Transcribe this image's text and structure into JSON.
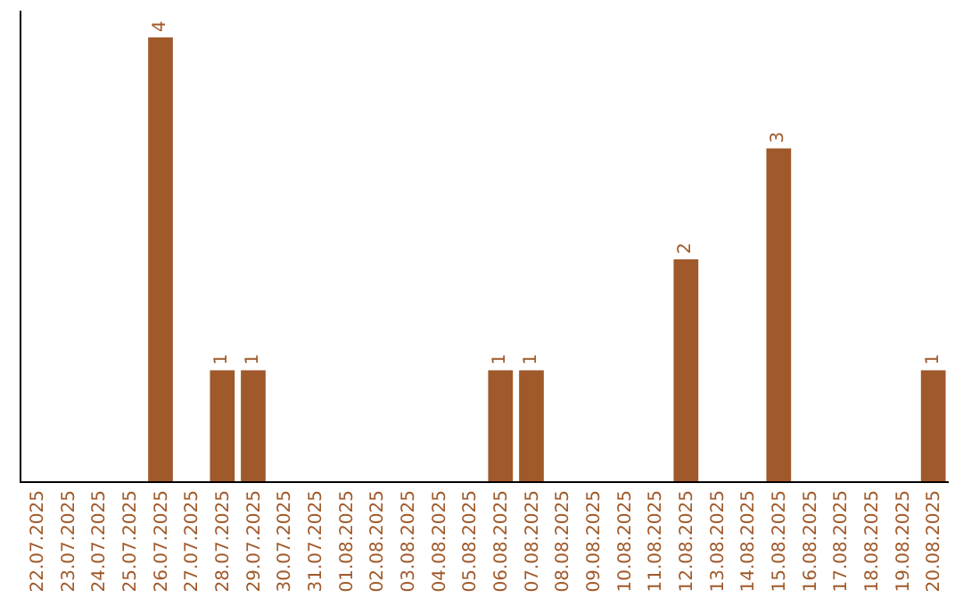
{
  "chart_data": {
    "type": "bar",
    "categories": [
      "22.07.2025",
      "23.07.2025",
      "24.07.2025",
      "25.07.2025",
      "26.07.2025",
      "27.07.2025",
      "28.07.2025",
      "29.07.2025",
      "30.07.2025",
      "31.07.2025",
      "01.08.2025",
      "02.08.2025",
      "03.08.2025",
      "04.08.2025",
      "05.08.2025",
      "06.08.2025",
      "07.08.2025",
      "08.08.2025",
      "09.08.2025",
      "10.08.2025",
      "11.08.2025",
      "12.08.2025",
      "13.08.2025",
      "14.08.2025",
      "15.08.2025",
      "16.08.2025",
      "17.08.2025",
      "18.08.2025",
      "19.08.2025",
      "20.08.2025"
    ],
    "values": [
      0,
      0,
      0,
      0,
      4,
      0,
      1,
      1,
      0,
      0,
      0,
      0,
      0,
      0,
      0,
      1,
      1,
      0,
      0,
      0,
      0,
      2,
      0,
      0,
      3,
      0,
      0,
      0,
      0,
      1
    ],
    "value_labels": [
      null,
      null,
      null,
      null,
      "4",
      null,
      "1",
      "1",
      null,
      null,
      null,
      null,
      null,
      null,
      null,
      "1",
      "1",
      null,
      null,
      null,
      null,
      "2",
      null,
      null,
      "3",
      null,
      null,
      null,
      null,
      "1"
    ],
    "color": "#a0592a"
  }
}
